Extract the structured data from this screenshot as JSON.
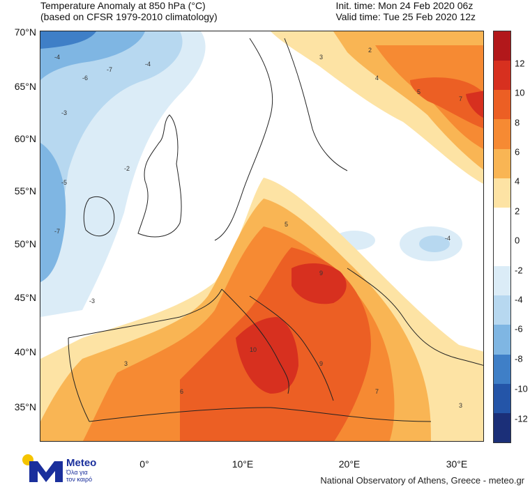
{
  "header": {
    "title_line1": "Temperature Anomaly at 850 hPa (°C)",
    "title_line2": "(based on CFSR 1979-2010 climatology)",
    "init_time": "Init. time: Mon 24 Feb 2020 06z",
    "valid_time": "Valid time: Tue 25 Feb 2020 12z"
  },
  "axes": {
    "lat_labels": [
      "70°N",
      "65°N",
      "60°N",
      "55°N",
      "50°N",
      "45°N",
      "40°N",
      "35°N"
    ],
    "lon_labels": [
      "0°",
      "10°E",
      "20°E",
      "30°E"
    ]
  },
  "colorbar": {
    "labels": [
      "12",
      "10",
      "8",
      "6",
      "4",
      "2",
      "0",
      "-2",
      "-4",
      "-6",
      "-8",
      "-10",
      "-12"
    ],
    "colors": [
      "#b2181b",
      "#d7301f",
      "#ec5f24",
      "#f68a33",
      "#f9b554",
      "#fde3a4",
      "#ffffff",
      "#ffffff",
      "#dbecf7",
      "#b7d8f0",
      "#7fb6e3",
      "#3f7fc7",
      "#2455a8",
      "#1b2f78"
    ]
  },
  "branding": {
    "logo_text": "Meteo",
    "logo_sub1": "Όλα για",
    "logo_sub2": "τον καιρό",
    "credit": "National Observatory of Athens, Greece - meteo.gr"
  },
  "contour_labels": [
    "3",
    "-3",
    "-4",
    "-5",
    "-6",
    "-7",
    "3",
    "4",
    "5",
    "6",
    "7",
    "8",
    "9",
    "10",
    "-2",
    "2"
  ]
}
